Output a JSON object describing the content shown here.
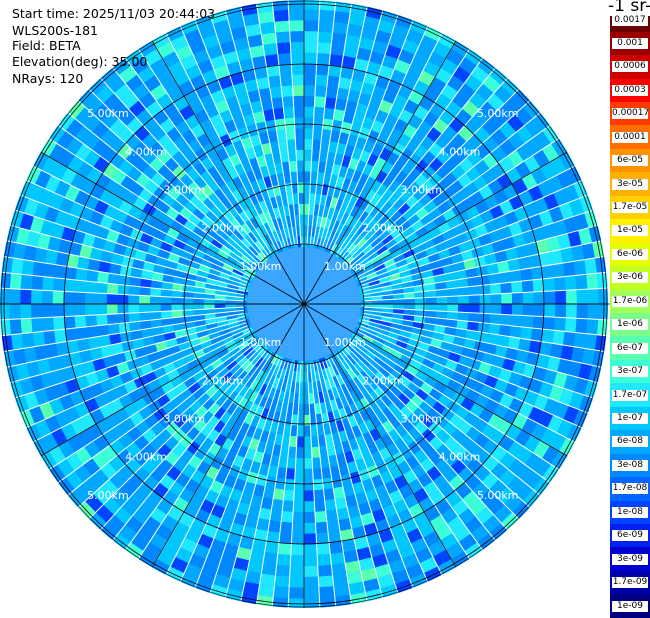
{
  "info": {
    "start_time": "Start time: 2025/11/03 20:44:03",
    "instrument": "WLS200s-181",
    "field": "Field: BETA",
    "elevation": "Elevation(deg): 35.00",
    "nrays": "NRays: 120"
  },
  "chart_data": {
    "type": "heatmap",
    "projection": "polar-ppi",
    "field": "BETA",
    "units_fragment": "-1 sr-",
    "nrays": 120,
    "elevation_deg": 35.0,
    "range_rings_km": [
      1,
      2,
      3,
      4,
      5
    ],
    "range_ring_labels": [
      "1.00km",
      "2.00km",
      "3.00km",
      "4.00km",
      "5.00km"
    ],
    "colorbar": {
      "ticks": [
        "0.0017",
        "0.001",
        "0.0006",
        "0.0003",
        "0.00017",
        "0.0001",
        "6e-05",
        "3e-05",
        "1.7e-05",
        "1e-05",
        "6e-06",
        "3e-06",
        "1.7e-06",
        "1e-06",
        "6e-07",
        "3e-07",
        "1.7e-07",
        "1e-07",
        "6e-08",
        "3e-08",
        "1.7e-08",
        "1e-08",
        "6e-09",
        "3e-09",
        "1.7e-09",
        "1e-09"
      ],
      "colors": [
        "#6b0000",
        "#9a0000",
        "#cd0000",
        "#ff0000",
        "#ff3c00",
        "#ff6e00",
        "#ff9400",
        "#ffb000",
        "#ffd000",
        "#fff000",
        "#e6ff00",
        "#c0ff20",
        "#a0ff5a",
        "#7cff8a",
        "#5affb0",
        "#3cffd8",
        "#1fe8ff",
        "#00c8ff",
        "#00a8ff",
        "#0088ff",
        "#0066ff",
        "#0044ff",
        "#0022f0",
        "#0000d0",
        "#0000a8",
        "#000080"
      ]
    },
    "dominant_value_range": [
      "3e-08",
      "1e-07"
    ]
  }
}
